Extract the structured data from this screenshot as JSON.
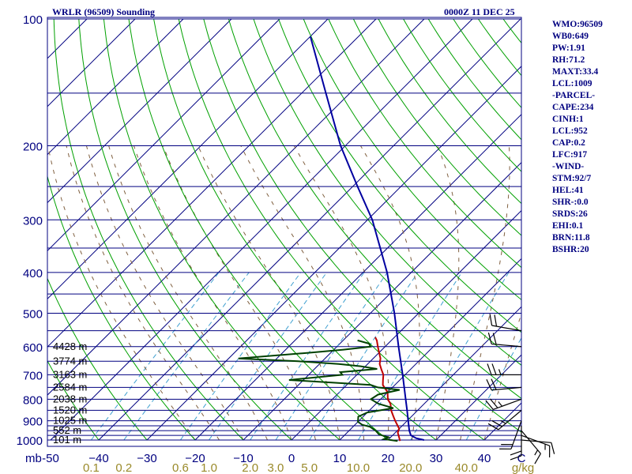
{
  "header": {
    "title": "WRLR (96509) Sounding",
    "datetime": "0000Z 11 DEC 25"
  },
  "stats": [
    "WMO:96509",
    "WB0:649",
    "PW:1.91",
    "RH:71.2",
    "MAXT:33.4",
    "LCL:1009",
    "-PARCEL-",
    "CAPE:234",
    "CINH:1",
    "LCL:952",
    "CAP:0.2",
    "LFC:917",
    "-WIND-",
    "STM:92/7",
    "HEL:41",
    "SHR-:0.0",
    "SRDS:26",
    "EHI:0.1",
    "BRN:11.8",
    "BSHR:20"
  ],
  "colors": {
    "isobar": "#000080",
    "isotherm": "#000080",
    "dry_adiabat": "#00a000",
    "moist_adiabat": "#806040",
    "mixing_ratio": "#3fa0d0",
    "temperature": "#c00000",
    "dewpoint": "#004000",
    "parcel": "#0000a0",
    "wind_barb": "#000000"
  },
  "chart_data": {
    "type": "line",
    "title": "WRLR (96509) Sounding",
    "diagram": "skew-T log-P",
    "pressure_axis": {
      "unit_label": "mb",
      "range": [
        1000,
        100
      ],
      "ticks": [
        100,
        200,
        300,
        400,
        500,
        600,
        700,
        800,
        900,
        1000
      ],
      "tick_labels": [
        "100",
        "200",
        "300",
        "400",
        "500",
        "600",
        "700",
        "800",
        "900",
        "1000"
      ],
      "isobars": [
        100,
        150,
        200,
        250,
        300,
        350,
        400,
        450,
        500,
        550,
        600,
        650,
        700,
        750,
        800,
        850,
        900,
        925,
        950,
        975,
        1000
      ]
    },
    "temperature_axis": {
      "unit": "C",
      "ticks": [
        -50,
        -40,
        -30,
        -20,
        -10,
        0,
        10,
        20,
        30,
        40
      ],
      "tick_labels": [
        "-50",
        "−40",
        "−30",
        "−20",
        "−10",
        "0",
        "10",
        "20",
        "30",
        "40"
      ],
      "end_label": "C"
    },
    "mixing_ratio_axis": {
      "unit": "g/kg",
      "ticks": [
        0.1,
        0.2,
        0.6,
        1.0,
        2.0,
        3.0,
        5.0,
        10.0,
        20.0,
        40.0
      ],
      "tick_labels": [
        "0.1",
        "0.2",
        "0.6",
        "1.0",
        "2.0",
        "3.0",
        "5.0",
        "10.0",
        "20.0",
        "40.0"
      ],
      "end_label": "g/kg"
    },
    "height_labels": [
      {
        "p": 1000,
        "text": "101 m"
      },
      {
        "p": 950,
        "text": "552 m"
      },
      {
        "p": 900,
        "text": "1025 m"
      },
      {
        "p": 850,
        "text": "1520 m"
      },
      {
        "p": 800,
        "text": "2038 m"
      },
      {
        "p": 750,
        "text": "2584 m"
      },
      {
        "p": 700,
        "text": "3163 m"
      },
      {
        "p": 650,
        "text": "3774 m"
      },
      {
        "p": 600,
        "text": "4428 m"
      }
    ],
    "series": [
      {
        "name": "Temperature",
        "points": [
          [
            1005,
            22.7
          ],
          [
            990,
            22.0
          ],
          [
            960,
            20.5
          ],
          [
            940,
            20.0
          ],
          [
            900,
            17.5
          ],
          [
            875,
            16.0
          ],
          [
            850,
            14.5
          ],
          [
            820,
            13.0
          ],
          [
            800,
            11.5
          ],
          [
            770,
            10.0
          ],
          [
            740,
            7.5
          ],
          [
            720,
            6.5
          ],
          [
            700,
            5.5
          ],
          [
            680,
            4.0
          ],
          [
            660,
            2.5
          ],
          [
            640,
            1.5
          ],
          [
            620,
            0.0
          ],
          [
            600,
            -1.5
          ],
          [
            580,
            -3.0
          ],
          [
            570,
            -4.0
          ]
        ]
      },
      {
        "name": "Dewpoint",
        "points": [
          [
            1005,
            22.2
          ],
          [
            995,
            19.0
          ],
          [
            985,
            19.5
          ],
          [
            970,
            17.0
          ],
          [
            950,
            15.5
          ],
          [
            930,
            13.5
          ],
          [
            920,
            11.5
          ],
          [
            905,
            10.0
          ],
          [
            880,
            9.0
          ],
          [
            860,
            10.0
          ],
          [
            840,
            14.5
          ],
          [
            820,
            10.5
          ],
          [
            800,
            8.0
          ],
          [
            780,
            8.5
          ],
          [
            760,
            12.0
          ],
          [
            750,
            7.0
          ],
          [
            740,
            5.0
          ],
          [
            720,
            -13.0
          ],
          [
            700,
            -3.0
          ],
          [
            690,
            -4.0
          ],
          [
            678,
            3.0
          ],
          [
            668,
            -1.0
          ],
          [
            660,
            -6.0
          ],
          [
            650,
            -15.0
          ],
          [
            640,
            -28.0
          ],
          [
            620,
            -14.0
          ],
          [
            610,
            -8.0
          ],
          [
            600,
            -3.0
          ],
          [
            590,
            -4.0
          ],
          [
            580,
            -7.0
          ]
        ]
      },
      {
        "name": "Parcel",
        "points": [
          [
            1000,
            27.5
          ],
          [
            990,
            25.5
          ],
          [
            975,
            23.8
          ],
          [
            950,
            22.5
          ],
          [
            900,
            20.2
          ],
          [
            850,
            17.8
          ],
          [
            800,
            15.2
          ],
          [
            700,
            9.5
          ],
          [
            600,
            2.8
          ],
          [
            500,
            -5.0
          ],
          [
            400,
            -15.0
          ],
          [
            300,
            -29.0
          ],
          [
            250,
            -39.0
          ],
          [
            200,
            -51.0
          ],
          [
            150,
            -65.0
          ],
          [
            110,
            -80.0
          ]
        ]
      }
    ],
    "wind_barbs": [
      {
        "p": 1000,
        "dir": 95,
        "speed_kt": 10
      },
      {
        "p": 975,
        "dir": 110,
        "speed_kt": 15
      },
      {
        "p": 950,
        "dir": 140,
        "speed_kt": 15
      },
      {
        "p": 925,
        "dir": 180,
        "speed_kt": 20
      },
      {
        "p": 900,
        "dir": 200,
        "speed_kt": 20
      },
      {
        "p": 850,
        "dir": 230,
        "speed_kt": 25
      },
      {
        "p": 800,
        "dir": 250,
        "speed_kt": 25
      },
      {
        "p": 750,
        "dir": 265,
        "speed_kt": 20
      },
      {
        "p": 700,
        "dir": 270,
        "speed_kt": 25
      },
      {
        "p": 600,
        "dir": 275,
        "speed_kt": 20
      },
      {
        "p": 550,
        "dir": 280,
        "speed_kt": 20
      }
    ]
  }
}
